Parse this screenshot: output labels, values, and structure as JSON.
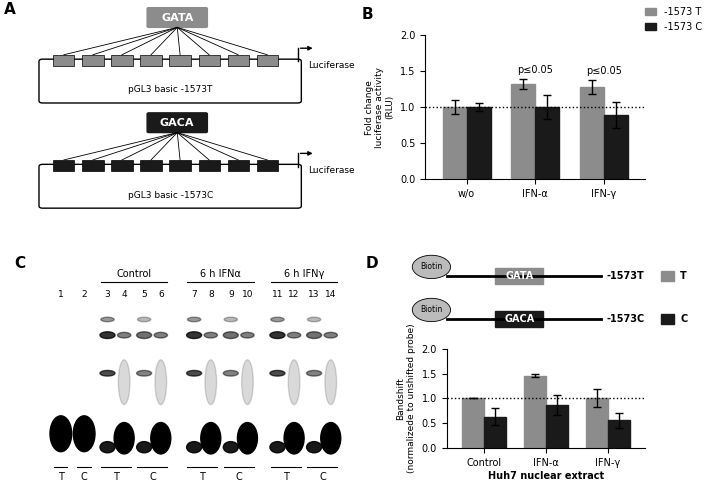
{
  "panel_a": {
    "panel_label": "A",
    "constructs": [
      {
        "motif": "GATA",
        "plasmid": "pGL3 basic -1573T",
        "reporter": "Luciferase",
        "color": "#8c8c8c"
      },
      {
        "motif": "GACA",
        "plasmid": "pGL3 basic -1573C",
        "reporter": "Luciferase",
        "color": "#1a1a1a"
      }
    ]
  },
  "chart_data": [
    {
      "type": "bar",
      "panel_label": "B",
      "categories": [
        "w/o",
        "IFN-α",
        "IFN-γ"
      ],
      "series": [
        {
          "name": "-1573 T",
          "color": "#8c8c8c",
          "values": [
            1.0,
            1.32,
            1.28
          ],
          "errors": [
            0.1,
            0.07,
            0.1
          ]
        },
        {
          "name": "-1573 C",
          "color": "#1a1a1a",
          "values": [
            1.0,
            1.0,
            0.89
          ],
          "errors": [
            0.05,
            0.17,
            0.18
          ]
        }
      ],
      "y_label": "Fold change\nluciferase activity\n(RLU)",
      "ylim": [
        0,
        2.0
      ],
      "yticks": [
        {
          "value": 0,
          "label": "0.0"
        },
        {
          "value": 0.5,
          "label": "0.5"
        },
        {
          "value": 1.0,
          "label": "1.0"
        },
        {
          "value": 1.5,
          "label": "1.5"
        },
        {
          "value": 2.0,
          "label": "2.0"
        }
      ],
      "reference_line": 1.0,
      "legend": "upper right",
      "annotations": [
        {
          "text": "p≤0.05",
          "category": "IFN-α"
        },
        {
          "text": "p≤0.05",
          "category": "IFN-γ"
        }
      ]
    },
    {
      "type": "bar",
      "panel_label": "D",
      "categories": [
        "Control",
        "IFN-α",
        "IFN-γ"
      ],
      "series": [
        {
          "name": "T",
          "color": "#8c8c8c",
          "values": [
            1.0,
            1.45,
            1.0
          ],
          "errors": [
            0.0,
            0.03,
            0.18
          ]
        },
        {
          "name": "C",
          "color": "#1a1a1a",
          "values": [
            0.63,
            0.86,
            0.56
          ],
          "errors": [
            0.17,
            0.2,
            0.15
          ]
        }
      ],
      "y_label": "Bandshift\n(normalizede to unshifted probe)",
      "x_label": "Huh7 nuclear extract",
      "ylim": [
        0,
        2.0
      ],
      "yticks": [
        {
          "value": 0,
          "label": "0.0"
        },
        {
          "value": 0.5,
          "label": "0.5"
        },
        {
          "value": 1.0,
          "label": "1.0"
        },
        {
          "value": 1.5,
          "label": "1.5"
        },
        {
          "value": 2.0,
          "label": "2.0"
        }
      ],
      "reference_line": 1.0
    }
  ],
  "panel_c": {
    "panel_label": "C",
    "lanes": [
      "1",
      "2",
      "3",
      "4",
      "5",
      "6",
      "7",
      "8",
      "9",
      "10",
      "11",
      "12",
      "13",
      "14"
    ],
    "groups": [
      {
        "label": "Control",
        "lanes": [
          3,
          4,
          5,
          6
        ]
      },
      {
        "label": "6 h IFNα",
        "lanes": [
          7,
          8,
          9,
          10
        ]
      },
      {
        "label": "6 h IFNγ",
        "lanes": [
          11,
          12,
          13,
          14
        ]
      }
    ],
    "alleles": [
      {
        "label": "T",
        "lanes": [
          1
        ]
      },
      {
        "label": "C",
        "lanes": [
          2
        ]
      },
      {
        "label": "T",
        "lanes": [
          3,
          4
        ]
      },
      {
        "label": "C",
        "lanes": [
          5,
          6
        ]
      },
      {
        "label": "T",
        "lanes": [
          7,
          8
        ]
      },
      {
        "label": "C",
        "lanes": [
          9,
          10
        ]
      },
      {
        "label": "T",
        "lanes": [
          11,
          12
        ]
      },
      {
        "label": "C",
        "lanes": [
          13,
          14
        ]
      }
    ]
  },
  "panel_d_probes": {
    "tag": "Biotin",
    "probes": [
      {
        "motif": "GATA",
        "name": "-1573T"
      },
      {
        "motif": "GACA",
        "name": "-1573C"
      }
    ]
  }
}
